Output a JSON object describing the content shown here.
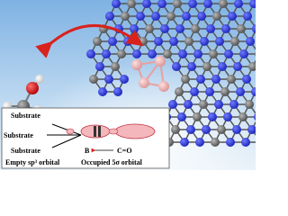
{
  "inset": {
    "substrates": [
      "Substrate",
      "Substrate",
      "Substrate"
    ],
    "atom_b": "B",
    "carbonyl": "C=O",
    "left_caption": "Empty sp³ orbital",
    "right_caption": "Occupied 5σ orbital"
  }
}
